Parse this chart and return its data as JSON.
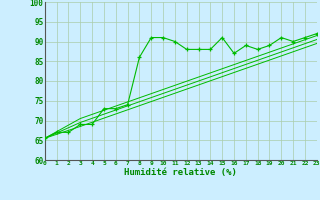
{
  "xlabel": "Humidité relative (%)",
  "bg_color": "#cceeff",
  "grid_color": "#aaccaa",
  "line_color": "#00bb00",
  "xmin": 0,
  "xmax": 23,
  "ymin": 60,
  "ymax": 100,
  "yticks": [
    60,
    65,
    70,
    75,
    80,
    85,
    90,
    95,
    100
  ],
  "series1_x": [
    0,
    1,
    2,
    3,
    4,
    5,
    6,
    7,
    8,
    9,
    10,
    11,
    12,
    13,
    14,
    15,
    16,
    17,
    18,
    19,
    20,
    21,
    22,
    23
  ],
  "series1_y": [
    65.5,
    67,
    67,
    69,
    69,
    73,
    73,
    74,
    86,
    91,
    91,
    90,
    88,
    88,
    88,
    91,
    87,
    89,
    88,
    89,
    91,
    90,
    91,
    92
  ],
  "series2_x": [
    0,
    3,
    23
  ],
  "series2_y": [
    65.5,
    69.5,
    90.5
  ],
  "series3_x": [
    0,
    3,
    23
  ],
  "series3_y": [
    65.5,
    70.5,
    91.5
  ],
  "series4_x": [
    0,
    3,
    23
  ],
  "series4_y": [
    65.5,
    68.5,
    89.5
  ]
}
